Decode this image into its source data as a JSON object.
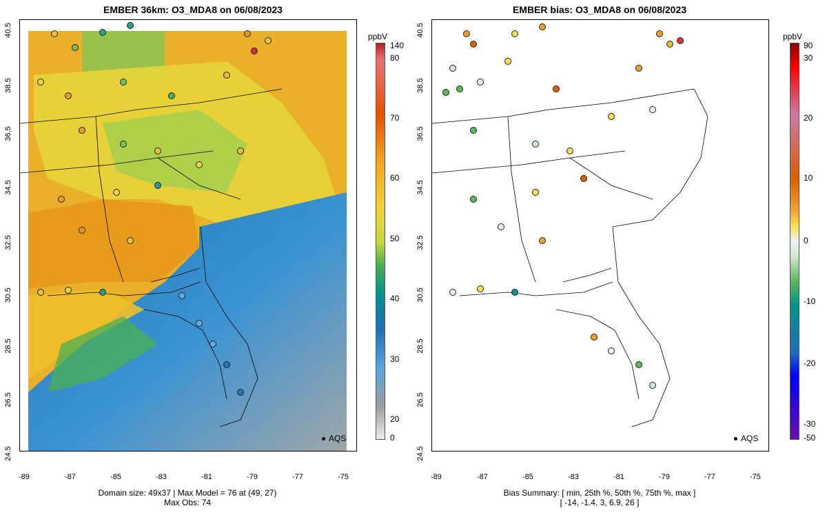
{
  "left_panel": {
    "title": "EMBER 36km: O3_MDA8 on 06/08/2023",
    "footer_line1": "Domain size: 49x37 | Max Model = 76 at (49, 27)",
    "footer_line2": "Max Obs: 74",
    "legend_unit": "ppbV",
    "colorbar_labels": [
      "140",
      "80",
      "70",
      "60",
      "50",
      "40",
      "30",
      "20",
      "0"
    ],
    "colorbar_colors": [
      "#b71c1c",
      "#e57373",
      "#e65100",
      "#f5a623",
      "#f3d23a",
      "#c8d840",
      "#4caf50",
      "#009688",
      "#1e6fb8",
      "#58a6e0",
      "#9e9e9e",
      "#eeeeee"
    ],
    "aqs_label": "AQS"
  },
  "right_panel": {
    "title": "EMBER bias: O3_MDA8 on 06/08/2023",
    "footer_line1": "Bias Summary: [ min, 25th %, 50th %, 75th %, max ]",
    "footer_line2": "[ -14,   -1.4,   3,   6.9,   26 ]",
    "legend_unit": "ppbV",
    "colorbar_labels": [
      "90",
      "30",
      "20",
      "10",
      "0",
      "-10",
      "-20",
      "-30",
      "-50"
    ],
    "colorbar_colors": [
      "#8b0000",
      "#ff0000",
      "#cc79a7",
      "#d95f02",
      "#f0a030",
      "#f5e050",
      "#f0f0f0",
      "#cfe8cf",
      "#5cb85c",
      "#009688",
      "#1e6fb8",
      "#0000ff",
      "#6a0dad"
    ],
    "aqs_label": "AQS"
  },
  "axes": {
    "x_ticks": [
      "-89",
      "-87",
      "-85",
      "-83",
      "-81",
      "-79",
      "-77",
      "-75"
    ],
    "y_ticks": [
      "40.5",
      "38.5",
      "36.5",
      "34.5",
      "32.5",
      "30.5",
      "28.5",
      "26.5",
      "24.5"
    ]
  },
  "colors": {
    "ocean_dark": "#1f78b4",
    "ocean_light": "#5aaee6",
    "ocean_grey": "#a0a6a8",
    "land_orange": "#e6a020",
    "land_yellow": "#f0d23c",
    "land_green": "#6fc06a"
  }
}
